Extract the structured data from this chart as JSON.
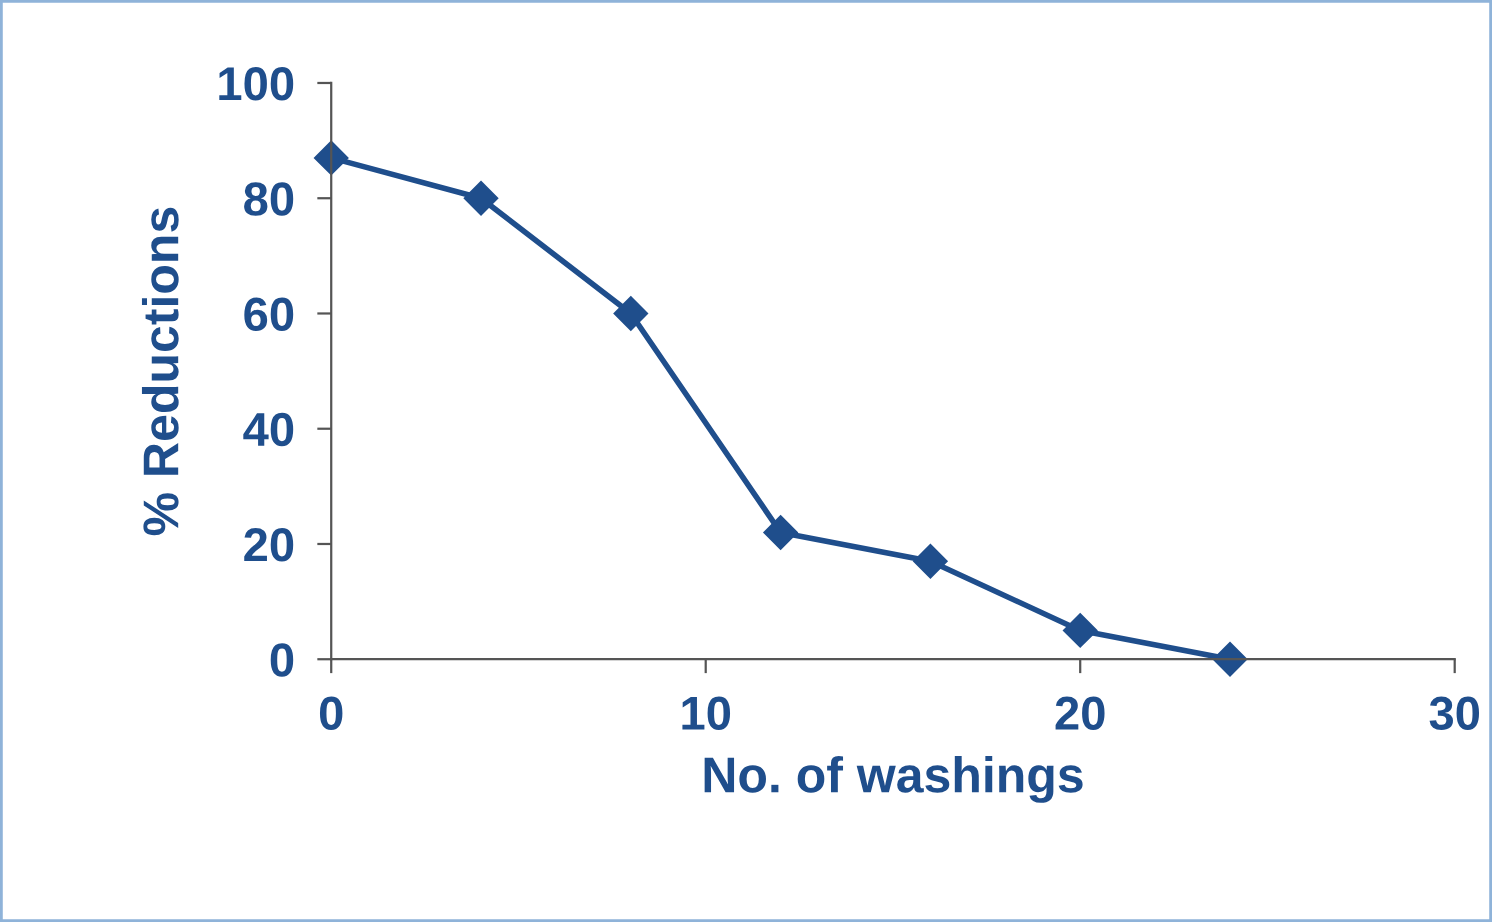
{
  "chart_data": {
    "type": "line",
    "xlabel": "No. of washings",
    "ylabel": "% Reductions",
    "x": [
      0,
      4,
      8,
      12,
      16,
      20,
      24
    ],
    "series": [
      {
        "color": "#1f4e8c",
        "values": [
          87,
          80,
          60,
          22,
          17,
          5,
          0
        ]
      }
    ],
    "xlim": [
      0,
      30
    ],
    "xticks": [
      0,
      10,
      20,
      30
    ],
    "ylim": [
      0,
      100
    ],
    "yticks": [
      0,
      20,
      40,
      60,
      80,
      100
    ],
    "marker": "diamond",
    "line_style": "solid",
    "grid": false
  }
}
